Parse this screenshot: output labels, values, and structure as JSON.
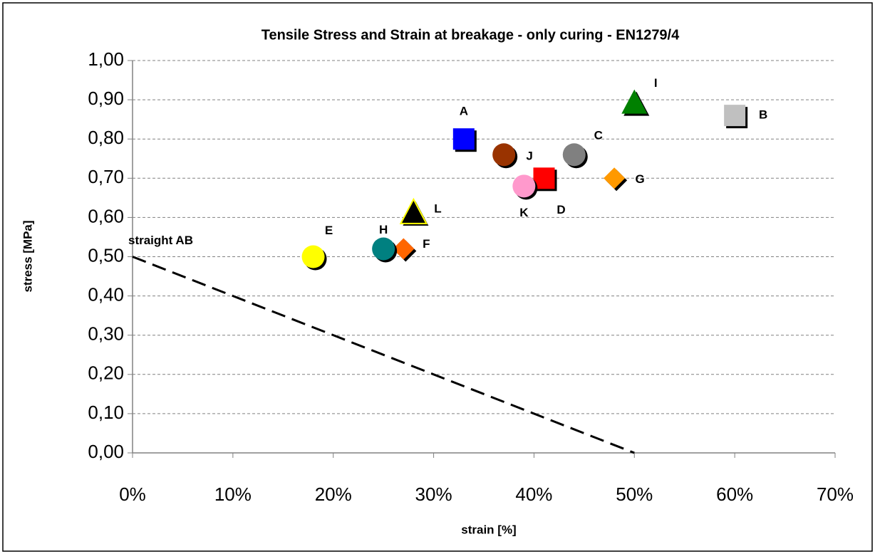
{
  "chart_data": {
    "type": "scatter",
    "title": "Tensile Stress and Strain at breakage - only curing - EN1279/4",
    "x_label": "strain [%]",
    "y_label": "stress [MPa]",
    "xlim": [
      0,
      70
    ],
    "xticks": [
      {
        "value": 0,
        "label": "0%"
      },
      {
        "value": 10,
        "label": "10%"
      },
      {
        "value": 20,
        "label": "20%"
      },
      {
        "value": 30,
        "label": "30%"
      },
      {
        "value": 40,
        "label": "40%"
      },
      {
        "value": 50,
        "label": "50%"
      },
      {
        "value": 60,
        "label": "60%"
      },
      {
        "value": 70,
        "label": "70%"
      }
    ],
    "ylim": [
      0,
      1
    ],
    "yticks": [
      {
        "value": 0,
        "label": "0,00"
      },
      {
        "value": 0.1,
        "label": "0,10"
      },
      {
        "value": 0.2,
        "label": "0,20"
      },
      {
        "value": 0.3,
        "label": "0,30"
      },
      {
        "value": 0.4,
        "label": "0,40"
      },
      {
        "value": 0.5,
        "label": "0,50"
      },
      {
        "value": 0.6,
        "label": "0,60"
      },
      {
        "value": 0.7,
        "label": "0,70"
      },
      {
        "value": 0.8,
        "label": "0,80"
      },
      {
        "value": 0.9,
        "label": "0,90"
      },
      {
        "value": 1,
        "label": "1,00"
      }
    ],
    "grid": true,
    "series": [
      {
        "name": "straight AB",
        "color": "#000000",
        "marker": "line",
        "x": [
          0,
          50
        ],
        "y": [
          0.5,
          0
        ]
      },
      {
        "name": "A",
        "color": "#0000ff",
        "marker": "square",
        "x": [
          33
        ],
        "y": [
          0.8
        ]
      },
      {
        "name": "B",
        "color": "#c0c0c0",
        "marker": "square",
        "x": [
          60
        ],
        "y": [
          0.86
        ]
      },
      {
        "name": "C",
        "color": "#808080",
        "marker": "circle",
        "x": [
          44
        ],
        "y": [
          0.76
        ]
      },
      {
        "name": "D",
        "color": "#ff0000",
        "marker": "square",
        "x": [
          41
        ],
        "y": [
          0.7
        ]
      },
      {
        "name": "E",
        "color": "#ffff00",
        "marker": "circle",
        "x": [
          18
        ],
        "y": [
          0.5
        ]
      },
      {
        "name": "F",
        "color": "#ff6600",
        "marker": "diamond",
        "x": [
          27
        ],
        "y": [
          0.52
        ]
      },
      {
        "name": "G",
        "color": "#ff9900",
        "marker": "diamond",
        "x": [
          48
        ],
        "y": [
          0.7
        ]
      },
      {
        "name": "H",
        "color": "#008080",
        "marker": "circle",
        "x": [
          25
        ],
        "y": [
          0.52
        ]
      },
      {
        "name": "I",
        "color": "#008000",
        "marker": "triangle",
        "x": [
          50
        ],
        "y": [
          0.89
        ]
      },
      {
        "name": "J",
        "color": "#993300",
        "marker": "circle",
        "x": [
          37
        ],
        "y": [
          0.76
        ]
      },
      {
        "name": "K",
        "color": "#ff99cc",
        "marker": "circle",
        "x": [
          39
        ],
        "y": [
          0.68
        ]
      },
      {
        "name": "L",
        "color": "#000000",
        "marker": "triangle",
        "x": [
          28
        ],
        "y": [
          0.61
        ]
      }
    ]
  }
}
